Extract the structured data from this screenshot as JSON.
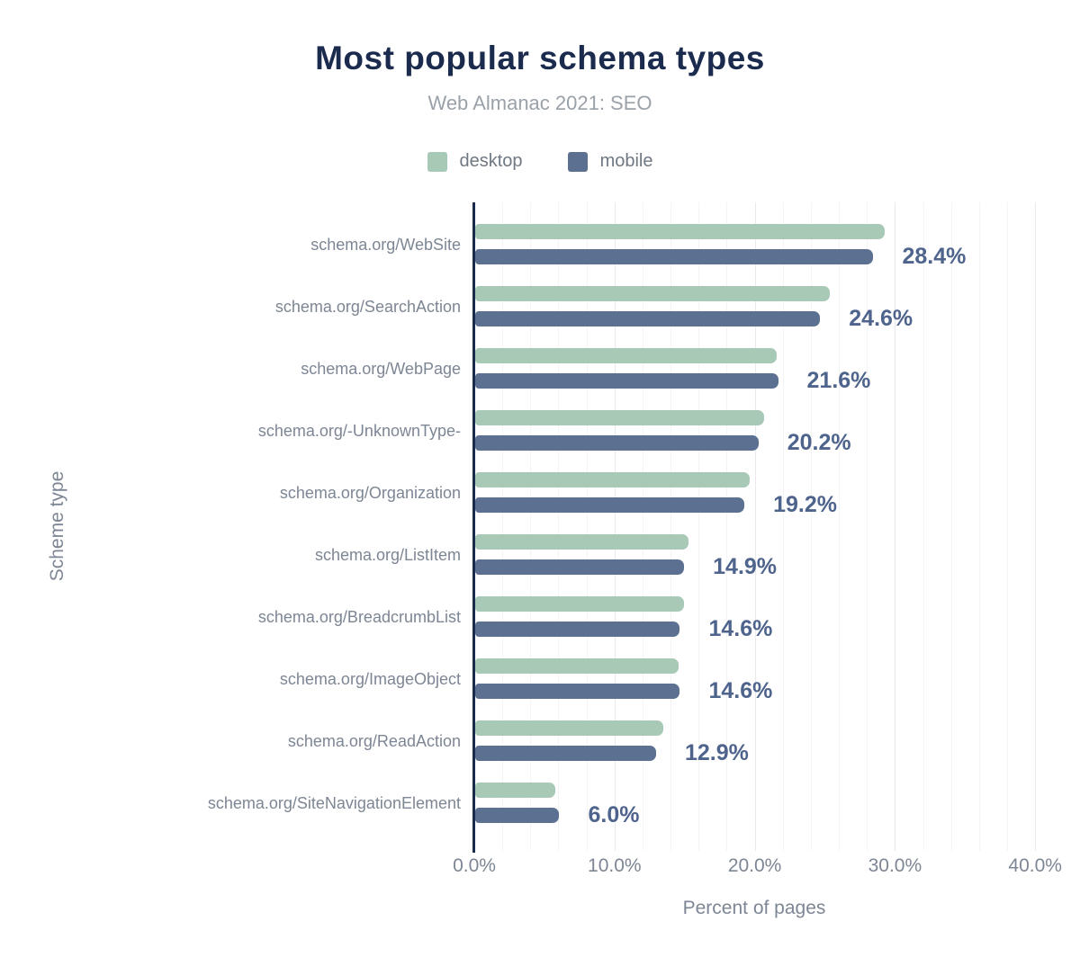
{
  "header": {
    "title": "Most popular schema types",
    "subtitle": "Web Almanac 2021: SEO"
  },
  "legend": [
    {
      "label": "desktop",
      "color": "#a8c9b6"
    },
    {
      "label": "mobile",
      "color": "#5c7191"
    }
  ],
  "chart_data": {
    "type": "bar",
    "orientation": "horizontal",
    "title": "Most popular schema types",
    "subtitle": "Web Almanac 2021: SEO",
    "xlabel": "Percent of pages",
    "ylabel": "Scheme type",
    "xlim": [
      0,
      40
    ],
    "xticks": [
      {
        "value": 0,
        "label": "0.0%"
      },
      {
        "value": 10,
        "label": "10.0%"
      },
      {
        "value": 20,
        "label": "20.0%"
      },
      {
        "value": 30,
        "label": "30.0%"
      },
      {
        "value": 40,
        "label": "40.0%"
      }
    ],
    "grid": "vertical, minor every 2%, major every 10%, legend top center",
    "categories": [
      "schema.org/WebSite",
      "schema.org/SearchAction",
      "schema.org/WebPage",
      "schema.org/-UnknownType-",
      "schema.org/Organization",
      "schema.org/ListItem",
      "schema.org/BreadcrumbList",
      "schema.org/ImageObject",
      "schema.org/ReadAction",
      "schema.org/SiteNavigationElement"
    ],
    "series": [
      {
        "name": "desktop",
        "color": "#a8c9b6",
        "values": [
          29.2,
          25.3,
          21.5,
          20.6,
          19.6,
          15.2,
          14.9,
          14.5,
          13.4,
          5.7
        ]
      },
      {
        "name": "mobile",
        "color": "#5c7191",
        "values": [
          28.4,
          24.6,
          21.6,
          20.2,
          19.2,
          14.9,
          14.6,
          14.6,
          12.9,
          6.0
        ]
      }
    ],
    "value_labels": [
      "28.4%",
      "24.6%",
      "21.6%",
      "20.2%",
      "19.2%",
      "14.9%",
      "14.6%",
      "14.6%",
      "12.9%",
      "6.0%"
    ]
  },
  "colors": {
    "title": "#1b2b4d",
    "subtitle": "#9aa1a9",
    "axis_line": "#1b2b4d",
    "value_label": "#4e648c",
    "category_label": "#7d8694",
    "desktop": "#a8c9b6",
    "mobile": "#5c7191"
  }
}
